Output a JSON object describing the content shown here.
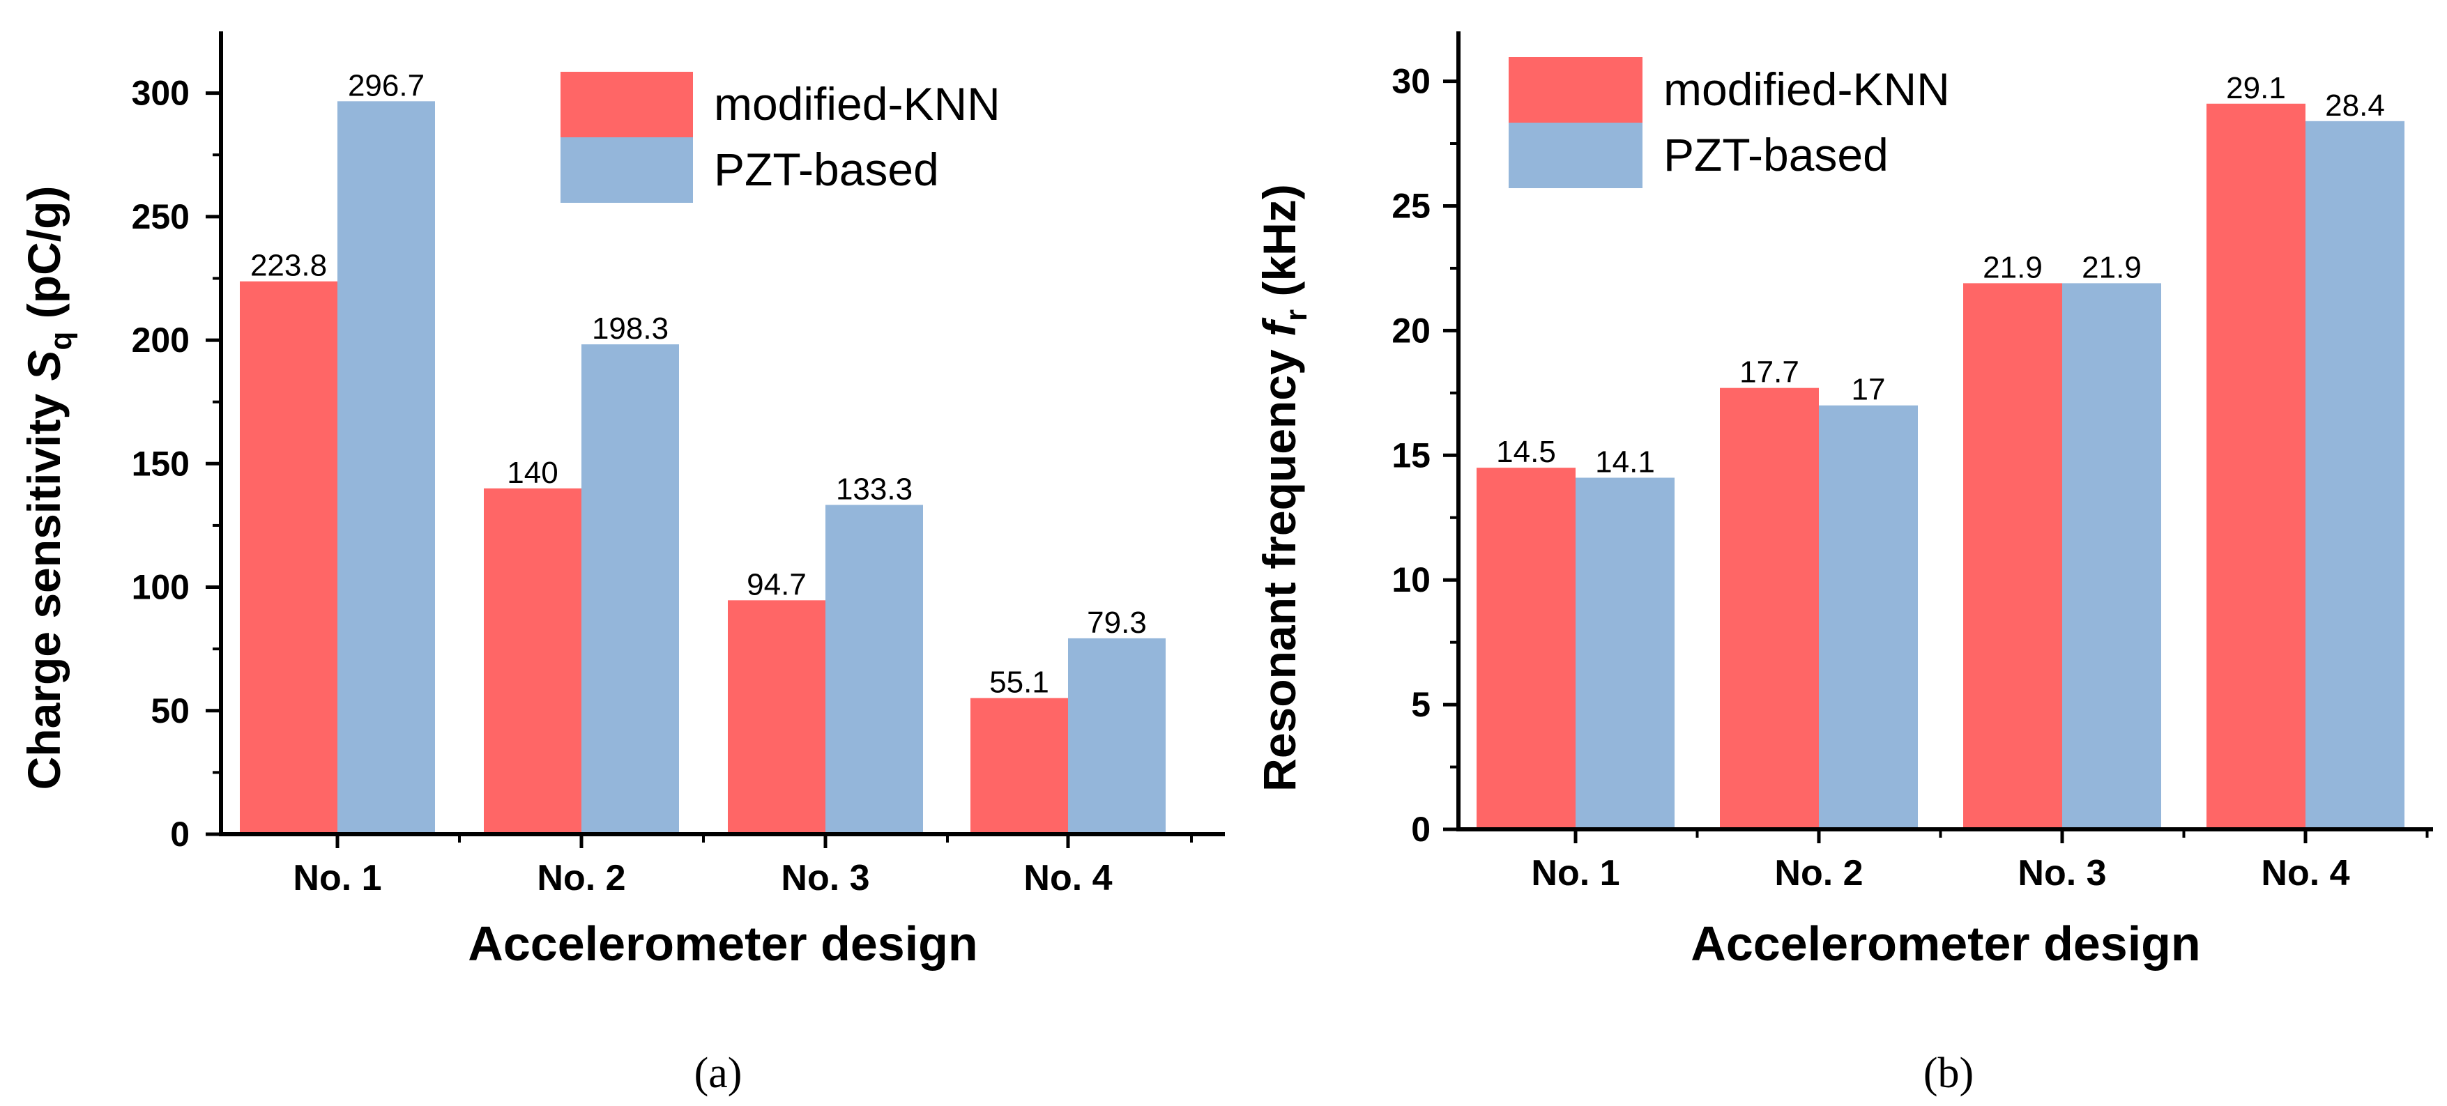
{
  "colors": {
    "modified_knn": "#FF6666",
    "pzt_based": "#94B6DA",
    "axis": "#000000"
  },
  "chart_data": [
    {
      "type": "bar",
      "panel_label": "(a)",
      "title": "",
      "xlabel": "Accelerometer design",
      "ylabel_main": "Charge sensitivity ",
      "ylabel_symbol": "S",
      "ylabel_subscript": "q",
      "ylabel_unit": " (pC/g)",
      "categories": [
        "No. 1",
        "No. 2",
        "No. 3",
        "No. 4"
      ],
      "series": [
        {
          "name": "modified-KNN",
          "values": [
            223.8,
            140,
            94.7,
            55.1
          ],
          "labels": [
            "223.8",
            "140",
            "94.7",
            "55.1"
          ]
        },
        {
          "name": "PZT-based",
          "values": [
            296.7,
            198.3,
            133.3,
            79.3
          ],
          "labels": [
            "296.7",
            "198.3",
            "133.3",
            "79.3"
          ]
        }
      ],
      "ylim": [
        0,
        325
      ],
      "yticks": [
        0,
        50,
        100,
        150,
        200,
        250,
        300
      ],
      "ytick_labels": [
        "0",
        "50",
        "100",
        "150",
        "200",
        "250",
        "300"
      ],
      "legend": "top-right"
    },
    {
      "type": "bar",
      "panel_label": "(b)",
      "title": "",
      "xlabel": "Accelerometer design",
      "ylabel_main": "Resonant frequency ",
      "ylabel_symbol": "f",
      "ylabel_subscript": "r",
      "ylabel_unit": " (kHz)",
      "categories": [
        "No. 1",
        "No. 2",
        "No. 3",
        "No. 4"
      ],
      "series": [
        {
          "name": "modified-KNN",
          "values": [
            14.5,
            17.7,
            21.9,
            29.1
          ],
          "labels": [
            "14.5",
            "17.7",
            "21.9",
            "29.1"
          ]
        },
        {
          "name": "PZT-based",
          "values": [
            14.1,
            17,
            21.9,
            28.4
          ],
          "labels": [
            "14.1",
            "17",
            "21.9",
            "28.4"
          ]
        }
      ],
      "ylim": [
        0,
        32
      ],
      "yticks": [
        0,
        5,
        10,
        15,
        20,
        25,
        30
      ],
      "ytick_labels": [
        "0",
        "5",
        "10",
        "15",
        "20",
        "25",
        "30"
      ],
      "legend": "top-left"
    }
  ]
}
